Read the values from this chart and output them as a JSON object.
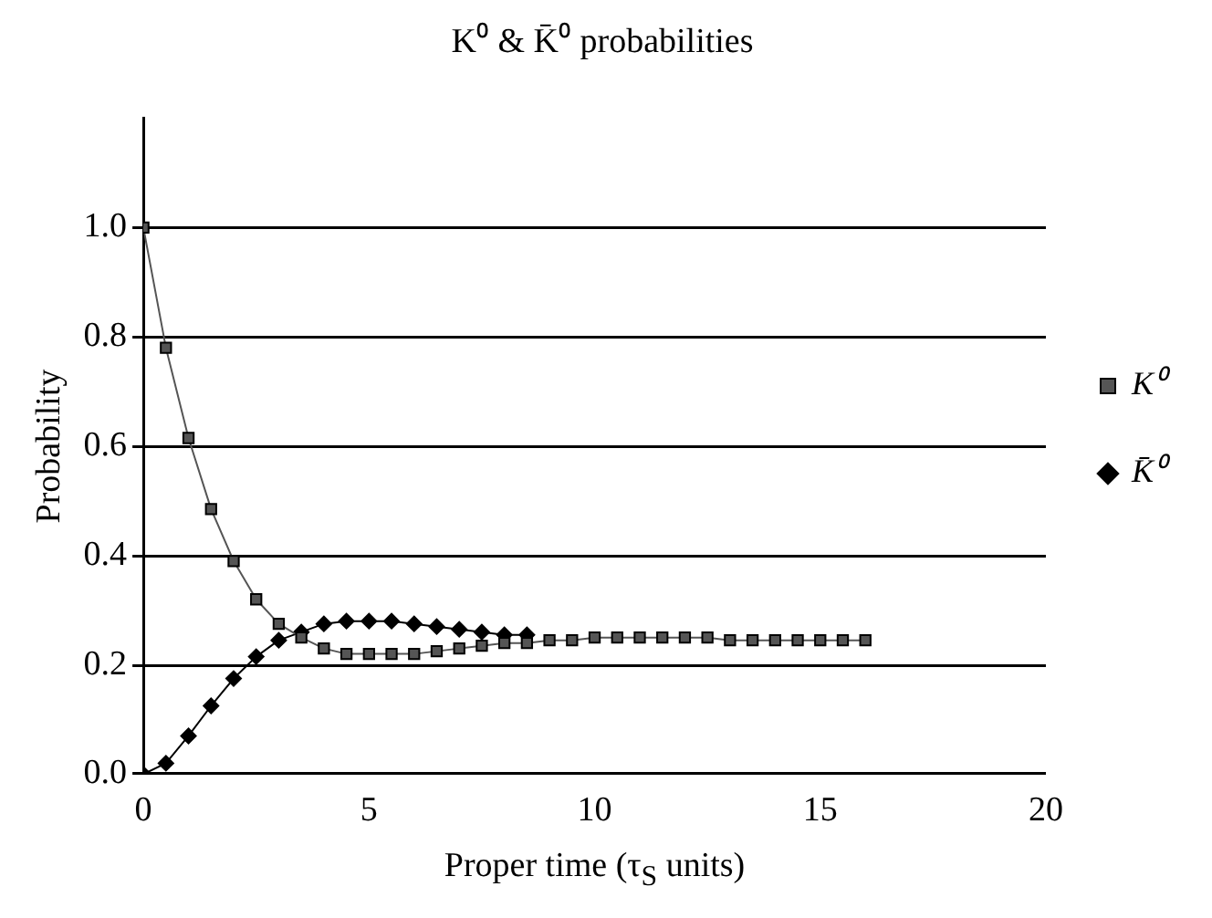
{
  "chart_data": {
    "type": "line",
    "title": "K⁰ & K̄⁰ probabilities",
    "xlabel": "Proper time (τ$_{S}$ units)",
    "ylabel": "Probability",
    "x": [
      0,
      0.5,
      1,
      1.5,
      2,
      2.5,
      3,
      3.5,
      4,
      4.5,
      5,
      5.5,
      6,
      6.5,
      7,
      7.5,
      8,
      8.5,
      9,
      9.5,
      10,
      10.5,
      11,
      11.5,
      12,
      12.5,
      13,
      13.5,
      14,
      14.5,
      15,
      15.5,
      16
    ],
    "series": [
      {
        "name": "K⁰",
        "color": "#555555",
        "marker": "square",
        "values": [
          1.0,
          0.78,
          0.615,
          0.485,
          0.39,
          0.32,
          0.275,
          0.25,
          0.23,
          0.22,
          0.22,
          0.22,
          0.22,
          0.225,
          0.23,
          0.235,
          0.24,
          0.24,
          0.245,
          0.245,
          0.25,
          0.25,
          0.25,
          0.25,
          0.25,
          0.25,
          0.245,
          0.245,
          0.245,
          0.245,
          0.245,
          0.245,
          0.245
        ]
      },
      {
        "name": "K̄⁰",
        "color": "#000000",
        "marker": "diamond",
        "values": [
          0,
          0.02,
          0.07,
          0.125,
          0.175,
          0.215,
          0.245,
          0.26,
          0.275,
          0.28,
          0.28,
          0.28,
          0.275,
          0.27,
          0.265,
          0.26,
          0.255,
          0.255,
          null,
          null,
          null,
          null,
          null,
          null,
          null,
          null,
          null,
          null,
          null,
          null,
          null,
          null,
          null
        ]
      }
    ],
    "xlim": [
      0,
      20
    ],
    "xticks": [
      0,
      5,
      10,
      15,
      20
    ],
    "ylim": [
      0,
      1.2
    ],
    "yticks": [
      {
        "value": 0,
        "label": "0.0"
      },
      {
        "value": 0.2,
        "label": "0.2"
      },
      {
        "value": 0.4,
        "label": "0.4"
      },
      {
        "value": 0.6,
        "label": "0.6"
      },
      {
        "value": 0.8,
        "label": "0.8"
      },
      {
        "value": 1,
        "label": "1.0"
      }
    ],
    "grid": "y",
    "legend": "right",
    "line_style": "solid"
  }
}
